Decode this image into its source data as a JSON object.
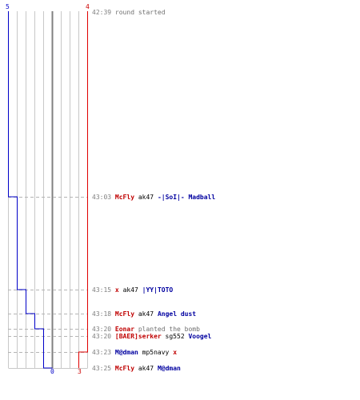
{
  "scoreboard": {
    "blue_start": "5",
    "red_start": "4",
    "blue_end": "0",
    "red_end": "3"
  },
  "colors": {
    "blue": "#0000c8",
    "red": "#e00000",
    "grid": "#c8c8c8",
    "center": "#808080",
    "gray_text": "#808080"
  },
  "events": [
    {
      "time": "42:39",
      "parts": [
        {
          "text": "round started",
          "style": "gray"
        }
      ]
    },
    {
      "time": "43:03",
      "parts": [
        {
          "text": "McFly",
          "style": "red"
        },
        {
          "text": "ak47",
          "style": "blk"
        },
        {
          "text": "-|SoI|- Madball",
          "style": "blue"
        }
      ]
    },
    {
      "time": "43:15",
      "parts": [
        {
          "text": "x",
          "style": "red"
        },
        {
          "text": "ak47",
          "style": "blk"
        },
        {
          "text": "|YY|TOTO",
          "style": "blue"
        }
      ]
    },
    {
      "time": "43:18",
      "parts": [
        {
          "text": "McFly",
          "style": "red"
        },
        {
          "text": "ak47",
          "style": "blk"
        },
        {
          "text": "Angel dust",
          "style": "blue"
        }
      ]
    },
    {
      "time": "43:20",
      "parts": [
        {
          "text": "Eonar",
          "style": "red"
        },
        {
          "text": "planted the bomb",
          "style": "gray"
        }
      ]
    },
    {
      "time": "43:20",
      "parts": [
        {
          "text": "[BAER]serker",
          "style": "red"
        },
        {
          "text": "sg552",
          "style": "blk"
        },
        {
          "text": "Voogel",
          "style": "blue"
        }
      ]
    },
    {
      "time": "43:23",
      "parts": [
        {
          "text": "M@dman",
          "style": "blue"
        },
        {
          "text": "mp5navy",
          "style": "blk"
        },
        {
          "text": "x",
          "style": "red"
        }
      ]
    },
    {
      "time": "43:25",
      "parts": [
        {
          "text": "McFly",
          "style": "red"
        },
        {
          "text": "ak47",
          "style": "blk"
        },
        {
          "text": "M@dman",
          "style": "blue"
        }
      ]
    }
  ]
}
